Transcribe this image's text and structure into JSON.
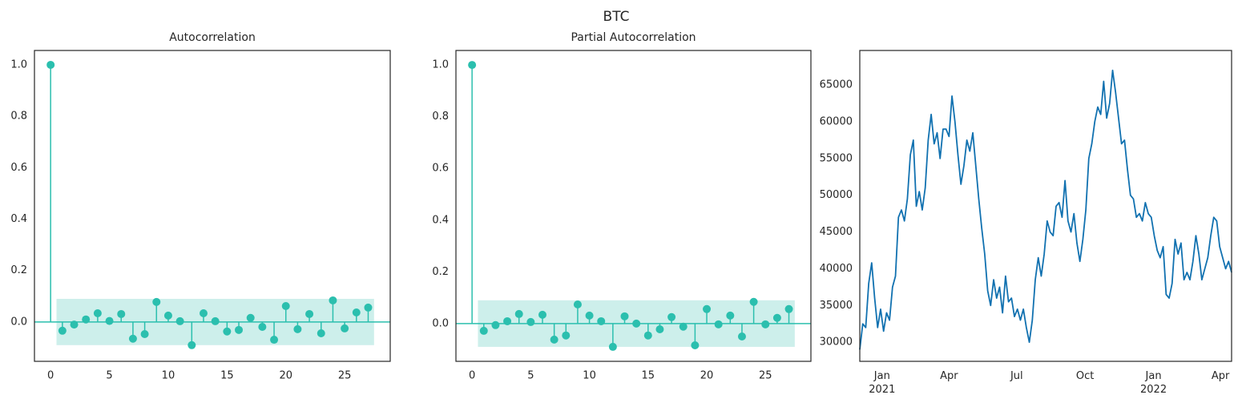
{
  "title": "BTC",
  "chart_data": [
    {
      "type": "stem",
      "title": "Autocorrelation",
      "color": "#2bbfae",
      "band_color": "#cdefeb",
      "x": [
        0,
        1,
        2,
        3,
        4,
        5,
        6,
        7,
        8,
        9,
        10,
        11,
        12,
        13,
        14,
        15,
        16,
        17,
        18,
        19,
        20,
        21,
        22,
        23,
        24,
        25,
        26,
        27
      ],
      "values": [
        1,
        -0.034,
        -0.01,
        0.01,
        0.034,
        0.004,
        0.031,
        -0.065,
        -0.047,
        0.078,
        0.025,
        0.003,
        -0.09,
        0.034,
        0.003,
        -0.037,
        -0.031,
        0.016,
        -0.019,
        -0.069,
        0.062,
        -0.028,
        0.031,
        -0.044,
        0.084,
        -0.025,
        0.037,
        0.056
      ],
      "confidence_band": {
        "lower": -0.09,
        "upper": 0.09
      },
      "xlim": [
        -1.375,
        28.875
      ],
      "ylim": [
        -0.153,
        1.056
      ],
      "xticks": [
        0,
        5,
        10,
        15,
        20,
        25
      ],
      "yticks": [
        {
          "value": 0,
          "label": "0.0"
        },
        0.2,
        0.4,
        0.6,
        0.8,
        {
          "value": 1,
          "label": "1.0"
        }
      ]
    },
    {
      "type": "stem",
      "title": "Partial Autocorrelation",
      "color": "#2bbfae",
      "band_color": "#cdefeb",
      "x": [
        0,
        1,
        2,
        3,
        4,
        5,
        6,
        7,
        8,
        9,
        10,
        11,
        12,
        13,
        14,
        15,
        16,
        17,
        18,
        19,
        20,
        21,
        22,
        23,
        24,
        25,
        26,
        27
      ],
      "values": [
        1,
        -0.028,
        -0.006,
        0.009,
        0.037,
        0.006,
        0.034,
        -0.062,
        -0.046,
        0.074,
        0.031,
        0.009,
        -0.09,
        0.028,
        0,
        -0.046,
        -0.022,
        0.025,
        -0.012,
        -0.084,
        0.056,
        -0.003,
        0.031,
        -0.05,
        0.084,
        -0.003,
        0.022,
        0.056
      ],
      "confidence_band": {
        "lower": -0.09,
        "upper": 0.09
      },
      "xlim": [
        -1.375,
        28.875
      ],
      "ylim": [
        -0.146,
        1.056
      ],
      "xticks": [
        0,
        5,
        10,
        15,
        20,
        25
      ],
      "yticks": [
        {
          "value": 0,
          "label": "0.0"
        },
        0.2,
        0.4,
        0.6,
        0.8,
        {
          "value": 1,
          "label": "1.0"
        }
      ]
    },
    {
      "type": "line",
      "color": "#1171b0",
      "x": [
        18598,
        18602,
        18606,
        18610,
        18614,
        18618,
        18622,
        18626,
        18630,
        18634,
        18638,
        18642,
        18646,
        18650,
        18654,
        18658,
        18662,
        18666,
        18670,
        18674,
        18678,
        18682,
        18686,
        18690,
        18694,
        18698,
        18702,
        18706,
        18710,
        18714,
        18718,
        18722,
        18726,
        18730,
        18734,
        18738,
        18742,
        18746,
        18750,
        18754,
        18758,
        18762,
        18766,
        18770,
        18774,
        18778,
        18782,
        18786,
        18790,
        18794,
        18798,
        18802,
        18806,
        18810,
        18814,
        18818,
        18822,
        18826,
        18830,
        18834,
        18838,
        18842,
        18846,
        18850,
        18854,
        18858,
        18862,
        18866,
        18870,
        18874,
        18878,
        18882,
        18886,
        18890,
        18894,
        18898,
        18902,
        18906,
        18910,
        18914,
        18918,
        18922,
        18926,
        18930,
        18934,
        18938,
        18942,
        18946,
        18950,
        18954,
        18958,
        18962,
        18966,
        18970,
        18974,
        18978,
        18982,
        18986,
        18990,
        18994,
        18998,
        19002,
        19006,
        19010,
        19014,
        19018,
        19022,
        19026,
        19030,
        19034,
        19038,
        19042,
        19046,
        19050,
        19054,
        19058,
        19062,
        19066,
        19070,
        19074,
        19078,
        19082,
        19086,
        19090,
        19094,
        19098
      ],
      "values": [
        29000,
        32500,
        32000,
        38000,
        40800,
        36000,
        32000,
        34500,
        31500,
        34000,
        33000,
        37500,
        39000,
        47000,
        48000,
        46500,
        49500,
        55500,
        57500,
        48500,
        50500,
        48000,
        51000,
        57500,
        61000,
        57000,
        58500,
        55000,
        59000,
        59000,
        58000,
        63500,
        60000,
        55500,
        51500,
        54000,
        57500,
        56000,
        58500,
        54000,
        49500,
        45500,
        42000,
        37000,
        35000,
        38500,
        36000,
        37500,
        34000,
        39000,
        35500,
        36000,
        33500,
        34500,
        33000,
        34500,
        32000,
        30000,
        33000,
        38500,
        41500,
        39000,
        42000,
        46500,
        45000,
        44500,
        48500,
        49000,
        47000,
        52000,
        46500,
        45000,
        47500,
        43500,
        41000,
        44000,
        48000,
        55000,
        57000,
        60000,
        62000,
        61000,
        65500,
        60500,
        62500,
        67000,
        64000,
        60500,
        57000,
        57500,
        53500,
        50000,
        49500,
        47000,
        47500,
        46500,
        49000,
        47500,
        47000,
        44500,
        42500,
        41500,
        43000,
        36500,
        36000,
        38000,
        44000,
        42000,
        43500,
        38500,
        39500,
        38500,
        41000,
        44500,
        42000,
        38500,
        40000,
        41500,
        44500,
        47000,
        46500,
        43000,
        41500,
        40000,
        41000,
        39500
      ],
      "xlim": [
        18598,
        19098
      ],
      "ylim": [
        27400,
        69700
      ],
      "xticks": [
        {
          "value": 18628,
          "label": "Jan\n2021"
        },
        {
          "value": 18718,
          "label": "Apr"
        },
        {
          "value": 18809,
          "label": "Jul"
        },
        {
          "value": 18901,
          "label": "Oct"
        },
        {
          "value": 18993,
          "label": "Jan\n2022"
        },
        {
          "value": 19083,
          "label": "Apr"
        }
      ],
      "yticks": [
        30000,
        35000,
        40000,
        45000,
        50000,
        55000,
        60000,
        65000
      ]
    }
  ]
}
